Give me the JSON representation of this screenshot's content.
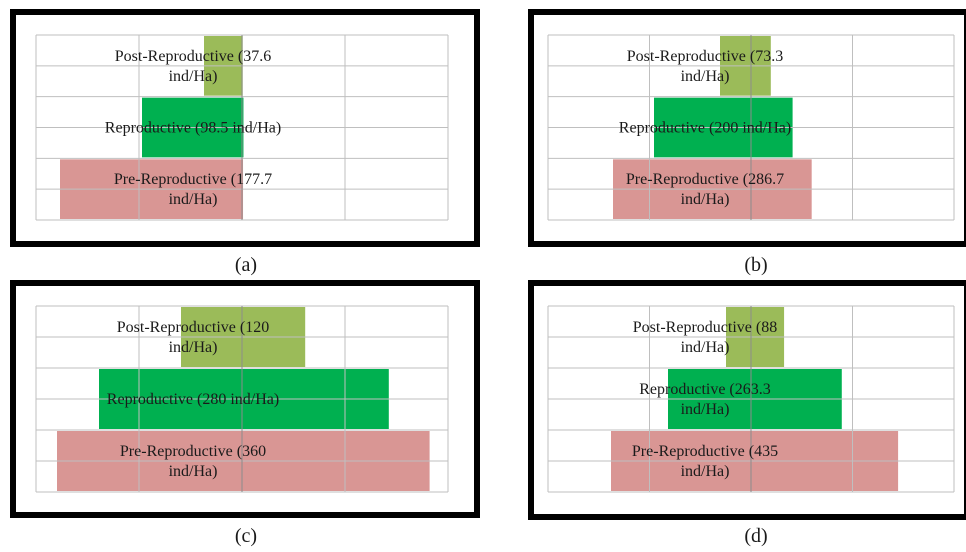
{
  "colors": {
    "post": "#9BBB59",
    "repro": "#00B050",
    "pre": "#D99694",
    "grid": "#BFBFBF",
    "axis": "#8C8C8C"
  },
  "chart_data": [
    {
      "type": "bar",
      "caption": "(a)",
      "categories": [
        "Post-Reproductive",
        "Reproductive",
        "Pre-Reproductive"
      ],
      "values": [
        37.6,
        98.5,
        177.7
      ],
      "unit": "ind/Ha",
      "labels": [
        [
          "Post-Reproductive (37.6",
          "ind/Ha)"
        ],
        [
          "Reproductive (98.5 ind/Ha)"
        ],
        [
          "Pre-Reproductive (177.7",
          "ind/Ha)"
        ]
      ]
    },
    {
      "type": "bar",
      "caption": "(b)",
      "categories": [
        "Post-Reproductive",
        "Reproductive",
        "Pre-Reproductive"
      ],
      "values": [
        73.3,
        200,
        286.7
      ],
      "unit": "ind/Ha",
      "labels": [
        [
          "Post-Reproductive (73.3",
          "ind/Ha)"
        ],
        [
          "Reproductive (200 ind/Ha)"
        ],
        [
          "Pre-Reproductive (286.7",
          "ind/Ha)"
        ]
      ]
    },
    {
      "type": "bar",
      "caption": "(c)",
      "categories": [
        "Post-Reproductive",
        "Reproductive",
        "Pre-Reproductive"
      ],
      "values": [
        120,
        280,
        360
      ],
      "unit": "ind/Ha",
      "labels": [
        [
          "Post-Reproductive (120",
          "ind/Ha)"
        ],
        [
          "Reproductive (280 ind/Ha)"
        ],
        [
          "Pre-Reproductive (360",
          "ind/Ha)"
        ]
      ]
    },
    {
      "type": "bar",
      "caption": "(d)",
      "categories": [
        "Post-Reproductive",
        "Reproductive",
        "Pre-Reproductive"
      ],
      "values": [
        88,
        263.3,
        435
      ],
      "unit": "ind/Ha",
      "labels": [
        [
          "Post-Reproductive (88",
          "ind/Ha)"
        ],
        [
          "Reproductive (263.3",
          "ind/Ha)"
        ],
        [
          "Pre-Reproductive (435",
          "ind/Ha)"
        ]
      ]
    }
  ]
}
